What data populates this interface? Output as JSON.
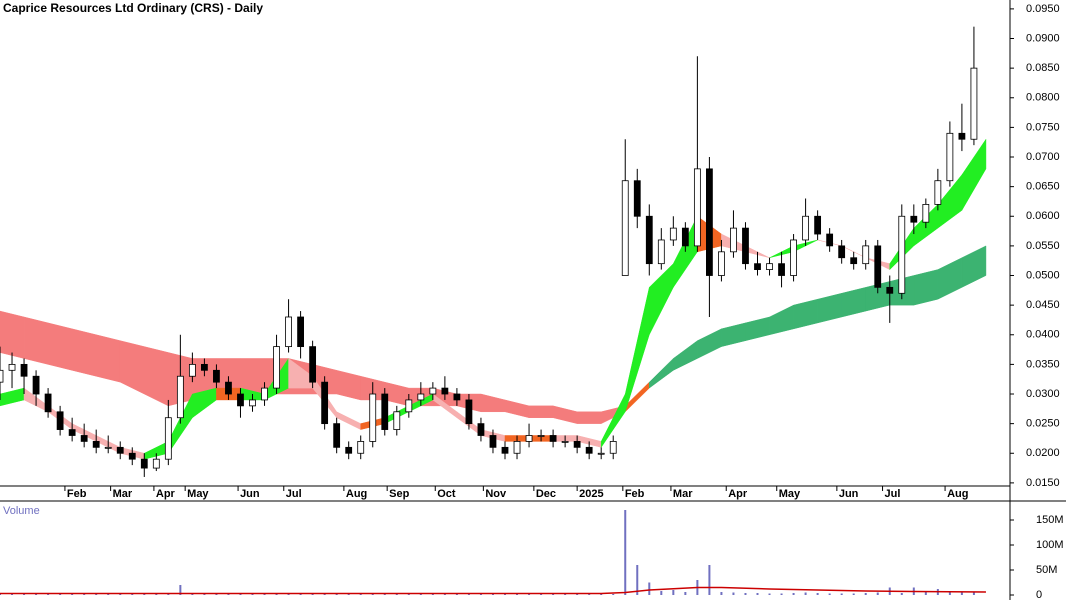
{
  "chart_data": {
    "type": "candlestick",
    "title": "Caprice Resources Ltd Ordinary (CRS) - Daily",
    "xlim": [
      0,
      420
    ],
    "xticks": [
      {
        "value": 27,
        "label": "Feb"
      },
      {
        "value": 46,
        "label": "Mar"
      },
      {
        "value": 64,
        "label": "Apr"
      },
      {
        "value": 77,
        "label": "May"
      },
      {
        "value": 99,
        "label": "Jun"
      },
      {
        "value": 118,
        "label": "Jul"
      },
      {
        "value": 143,
        "label": "Aug"
      },
      {
        "value": 161,
        "label": "Sep"
      },
      {
        "value": 181,
        "label": "Oct"
      },
      {
        "value": 201,
        "label": "Nov"
      },
      {
        "value": 222,
        "label": "Dec"
      },
      {
        "value": 240,
        "label": "2025"
      },
      {
        "value": 259,
        "label": "Feb"
      },
      {
        "value": 279,
        "label": "Mar"
      },
      {
        "value": 302,
        "label": "Apr"
      },
      {
        "value": 323,
        "label": "May"
      },
      {
        "value": 348,
        "label": "Jun"
      },
      {
        "value": 367,
        "label": "Jul"
      },
      {
        "value": 393,
        "label": "Aug"
      }
    ],
    "ylim": [
      0.0138,
      0.0965
    ],
    "yticks": [
      {
        "value": 0.015,
        "label": "0.0150"
      },
      {
        "value": 0.02,
        "label": "0.0200"
      },
      {
        "value": 0.025,
        "label": "0.0250"
      },
      {
        "value": 0.03,
        "label": "0.0300"
      },
      {
        "value": 0.035,
        "label": "0.0350"
      },
      {
        "value": 0.04,
        "label": "0.0400"
      },
      {
        "value": 0.045,
        "label": "0.0450"
      },
      {
        "value": 0.05,
        "label": "0.0500"
      },
      {
        "value": 0.055,
        "label": "0.0550"
      },
      {
        "value": 0.06,
        "label": "0.0600"
      },
      {
        "value": 0.065,
        "label": "0.0650"
      },
      {
        "value": 0.07,
        "label": "0.0700"
      },
      {
        "value": 0.075,
        "label": "0.0750"
      },
      {
        "value": 0.08,
        "label": "0.0800"
      },
      {
        "value": 0.085,
        "label": "0.0850"
      },
      {
        "value": 0.09,
        "label": "0.0900"
      },
      {
        "value": 0.095,
        "label": "0.0950"
      }
    ],
    "candles": {
      "up_color": "#ffffff",
      "down_color": "#000000",
      "x": [
        0,
        5,
        10,
        15,
        20,
        25,
        30,
        35,
        40,
        45,
        50,
        55,
        60,
        65,
        70,
        75,
        80,
        85,
        90,
        95,
        100,
        105,
        110,
        115,
        120,
        125,
        130,
        135,
        140,
        145,
        150,
        155,
        160,
        165,
        170,
        175,
        180,
        185,
        190,
        195,
        200,
        205,
        210,
        215,
        220,
        225,
        230,
        235,
        240,
        245,
        250,
        255,
        260,
        265,
        270,
        275,
        280,
        285,
        290,
        295,
        300,
        305,
        310,
        315,
        320,
        325,
        330,
        335,
        340,
        345,
        350,
        355,
        360,
        365,
        370,
        375,
        380,
        385,
        390,
        395,
        400,
        405
      ],
      "open": [
        0.032,
        0.034,
        0.035,
        0.033,
        0.03,
        0.027,
        0.024,
        0.023,
        0.022,
        0.021,
        0.021,
        0.02,
        0.019,
        0.0175,
        0.019,
        0.026,
        0.033,
        0.035,
        0.034,
        0.032,
        0.03,
        0.028,
        0.029,
        0.031,
        0.038,
        0.043,
        0.038,
        0.032,
        0.025,
        0.021,
        0.02,
        0.022,
        0.03,
        0.024,
        0.027,
        0.029,
        0.03,
        0.031,
        0.03,
        0.029,
        0.025,
        0.023,
        0.021,
        0.02,
        0.022,
        0.023,
        0.023,
        0.022,
        0.022,
        0.021,
        0.02,
        0.02,
        0.05,
        0.066,
        0.06,
        0.052,
        0.056,
        0.058,
        0.055,
        0.068,
        0.05,
        0.054,
        0.058,
        0.052,
        0.051,
        0.052,
        0.05,
        0.056,
        0.06,
        0.057,
        0.055,
        0.053,
        0.052,
        0.055,
        0.048,
        0.047,
        0.06,
        0.059,
        0.062,
        0.066,
        0.074,
        0.073
      ],
      "high": [
        0.038,
        0.037,
        0.036,
        0.034,
        0.031,
        0.028,
        0.026,
        0.025,
        0.024,
        0.023,
        0.022,
        0.021,
        0.02,
        0.02,
        0.029,
        0.04,
        0.037,
        0.036,
        0.035,
        0.033,
        0.031,
        0.03,
        0.032,
        0.04,
        0.046,
        0.044,
        0.039,
        0.033,
        0.026,
        0.022,
        0.023,
        0.032,
        0.031,
        0.028,
        0.03,
        0.032,
        0.032,
        0.033,
        0.031,
        0.03,
        0.026,
        0.024,
        0.022,
        0.023,
        0.025,
        0.024,
        0.024,
        0.023,
        0.023,
        0.022,
        0.021,
        0.023,
        0.073,
        0.068,
        0.062,
        0.058,
        0.06,
        0.059,
        0.087,
        0.07,
        0.056,
        0.061,
        0.059,
        0.054,
        0.053,
        0.054,
        0.057,
        0.063,
        0.061,
        0.058,
        0.056,
        0.054,
        0.056,
        0.056,
        0.05,
        0.062,
        0.062,
        0.063,
        0.068,
        0.076,
        0.079,
        0.092
      ],
      "low": [
        0.029,
        0.031,
        0.03,
        0.028,
        0.026,
        0.023,
        0.022,
        0.021,
        0.02,
        0.02,
        0.019,
        0.018,
        0.016,
        0.017,
        0.018,
        0.025,
        0.032,
        0.033,
        0.031,
        0.029,
        0.026,
        0.027,
        0.028,
        0.03,
        0.037,
        0.036,
        0.031,
        0.024,
        0.02,
        0.019,
        0.019,
        0.021,
        0.023,
        0.023,
        0.026,
        0.028,
        0.029,
        0.029,
        0.028,
        0.024,
        0.022,
        0.02,
        0.019,
        0.019,
        0.021,
        0.022,
        0.021,
        0.021,
        0.02,
        0.019,
        0.019,
        0.019,
        0.05,
        0.058,
        0.05,
        0.051,
        0.055,
        0.054,
        0.054,
        0.043,
        0.049,
        0.053,
        0.051,
        0.05,
        0.05,
        0.048,
        0.049,
        0.055,
        0.056,
        0.054,
        0.052,
        0.051,
        0.051,
        0.047,
        0.042,
        0.046,
        0.057,
        0.058,
        0.061,
        0.065,
        0.071,
        0.072
      ],
      "close": [
        0.034,
        0.035,
        0.033,
        0.03,
        0.027,
        0.024,
        0.023,
        0.022,
        0.021,
        0.021,
        0.02,
        0.019,
        0.0175,
        0.019,
        0.026,
        0.033,
        0.035,
        0.034,
        0.032,
        0.03,
        0.028,
        0.029,
        0.031,
        0.038,
        0.043,
        0.038,
        0.032,
        0.025,
        0.021,
        0.02,
        0.022,
        0.03,
        0.024,
        0.027,
        0.029,
        0.03,
        0.031,
        0.03,
        0.029,
        0.025,
        0.023,
        0.021,
        0.02,
        0.022,
        0.023,
        0.023,
        0.022,
        0.022,
        0.021,
        0.02,
        0.02,
        0.022,
        0.066,
        0.06,
        0.052,
        0.056,
        0.058,
        0.055,
        0.068,
        0.05,
        0.054,
        0.058,
        0.052,
        0.051,
        0.052,
        0.05,
        0.056,
        0.06,
        0.057,
        0.055,
        0.053,
        0.052,
        0.055,
        0.048,
        0.047,
        0.06,
        0.059,
        0.062,
        0.066,
        0.074,
        0.073,
        0.085
      ]
    },
    "ribbons": [
      {
        "x": [
          0,
          10,
          20,
          30,
          40,
          50,
          60,
          70,
          80,
          90,
          100,
          110,
          120,
          130,
          140,
          150,
          160,
          170,
          180,
          190,
          200,
          210,
          220,
          230,
          240,
          250,
          260,
          270,
          280,
          290,
          300,
          310,
          320,
          330,
          340,
          350,
          360,
          370,
          380,
          390,
          400,
          410
        ],
        "upper": [
          0.044,
          0.043,
          0.042,
          0.041,
          0.04,
          0.039,
          0.038,
          0.037,
          0.036,
          0.036,
          0.036,
          0.036,
          0.036,
          0.035,
          0.034,
          0.033,
          0.032,
          0.031,
          0.031,
          0.03,
          0.03,
          0.029,
          0.028,
          0.028,
          0.027,
          0.027,
          0.028,
          0.032,
          0.036,
          0.039,
          0.041,
          0.042,
          0.043,
          0.045,
          0.046,
          0.047,
          0.048,
          0.049,
          0.05,
          0.051,
          0.053,
          0.055
        ],
        "lower": [
          0.037,
          0.036,
          0.035,
          0.034,
          0.033,
          0.032,
          0.03,
          0.028,
          0.029,
          0.03,
          0.03,
          0.03,
          0.03,
          0.03,
          0.03,
          0.029,
          0.029,
          0.028,
          0.028,
          0.028,
          0.027,
          0.027,
          0.026,
          0.026,
          0.025,
          0.025,
          0.027,
          0.031,
          0.034,
          0.036,
          0.038,
          0.039,
          0.04,
          0.041,
          0.042,
          0.043,
          0.044,
          0.045,
          0.045,
          0.046,
          0.048,
          0.05
        ],
        "colors": [
          "#f47c7c",
          "#f47c7c",
          "#f47c7c",
          "#f47c7c",
          "#f47c7c",
          "#f47c7c",
          "#f47c7c",
          "#f47c7c",
          "#f47c7c",
          "#f47c7c",
          "#f47c7c",
          "#f47c7c",
          "#f47c7c",
          "#f47c7c",
          "#f47c7c",
          "#f47c7c",
          "#f47c7c",
          "#f47c7c",
          "#f47c7c",
          "#f47c7c",
          "#f47c7c",
          "#f47c7c",
          "#f47c7c",
          "#f47c7c",
          "#f47c7c",
          "#f47c7c",
          "#f26522",
          "#3cb371",
          "#3cb371",
          "#3cb371",
          "#3cb371",
          "#3cb371",
          "#3cb371",
          "#3cb371",
          "#3cb371",
          "#3cb371",
          "#3cb371",
          "#3cb371",
          "#3cb371",
          "#3cb371",
          "#3cb371",
          "#3cb371"
        ]
      },
      {
        "x": [
          0,
          10,
          20,
          30,
          40,
          50,
          60,
          70,
          80,
          90,
          100,
          110,
          120,
          130,
          140,
          150,
          160,
          170,
          180,
          190,
          200,
          210,
          220,
          230,
          240,
          250,
          260,
          270,
          280,
          290,
          300,
          310,
          320,
          330,
          340,
          350,
          360,
          370,
          380,
          390,
          400,
          410
        ],
        "upper": [
          0.03,
          0.031,
          0.028,
          0.025,
          0.023,
          0.021,
          0.02,
          0.022,
          0.03,
          0.031,
          0.031,
          0.03,
          0.036,
          0.033,
          0.027,
          0.025,
          0.026,
          0.028,
          0.03,
          0.027,
          0.024,
          0.023,
          0.023,
          0.023,
          0.023,
          0.022,
          0.03,
          0.048,
          0.052,
          0.06,
          0.057,
          0.055,
          0.053,
          0.055,
          0.056,
          0.055,
          0.053,
          0.052,
          0.058,
          0.062,
          0.067,
          0.073
        ],
        "lower": [
          0.028,
          0.029,
          0.027,
          0.024,
          0.022,
          0.02,
          0.019,
          0.02,
          0.026,
          0.029,
          0.029,
          0.029,
          0.031,
          0.031,
          0.026,
          0.024,
          0.025,
          0.027,
          0.029,
          0.026,
          0.023,
          0.022,
          0.022,
          0.022,
          0.022,
          0.021,
          0.027,
          0.04,
          0.048,
          0.054,
          0.055,
          0.054,
          0.053,
          0.054,
          0.056,
          0.055,
          0.053,
          0.051,
          0.055,
          0.058,
          0.061,
          0.068
        ],
        "colors": [
          "#22ee22",
          "#f7b0b0",
          "#f7b0b0",
          "#f7b0b0",
          "#f7b0b0",
          "#f7b0b0",
          "#22ee22",
          "#22ee22",
          "#22ee22",
          "#f26522",
          "#22ee22",
          "#22ee22",
          "#f7b0b0",
          "#f7b0b0",
          "#f7b0b0",
          "#f26522",
          "#22ee22",
          "#22ee22",
          "#f7b0b0",
          "#f7b0b0",
          "#f7b0b0",
          "#f26522",
          "#f26522",
          "#f7b0b0",
          "#f7b0b0",
          "#22ee22",
          "#22ee22",
          "#22ee22",
          "#22ee22",
          "#f26522",
          "#f7b0b0",
          "#f7b0b0",
          "#22ee22",
          "#22ee22",
          "#f7b0b0",
          "#f7b0b0",
          "#f7b0b0",
          "#22ee22",
          "#22ee22",
          "#22ee22",
          "#22ee22",
          "#22ee22"
        ]
      }
    ],
    "volume": {
      "label": "Volume",
      "color": "#7070c0",
      "ylim": [
        0,
        180000000
      ],
      "yticks": [
        {
          "value": 0,
          "label": "0"
        },
        {
          "value": 50000000,
          "label": "50M"
        },
        {
          "value": 100000000,
          "label": "100M"
        },
        {
          "value": 150000000,
          "label": "150M"
        }
      ],
      "values": [
        2000000,
        2000000,
        2000000,
        2000000,
        2000000,
        2000000,
        2000000,
        2000000,
        2000000,
        2000000,
        2000000,
        2000000,
        2000000,
        2000000,
        2000000,
        20000000,
        3000000,
        2000000,
        2000000,
        2000000,
        2000000,
        2000000,
        2000000,
        3000000,
        4000000,
        2000000,
        2000000,
        2000000,
        2000000,
        2000000,
        2000000,
        2000000,
        2000000,
        2000000,
        2000000,
        2000000,
        2000000,
        2000000,
        2000000,
        2000000,
        2000000,
        2000000,
        2000000,
        2000000,
        2000000,
        2000000,
        2000000,
        2000000,
        2000000,
        2000000,
        2000000,
        2000000,
        170000000,
        60000000,
        25000000,
        8000000,
        10000000,
        6000000,
        30000000,
        60000000,
        6000000,
        5000000,
        4000000,
        4000000,
        3000000,
        3000000,
        4000000,
        5000000,
        4000000,
        3000000,
        3000000,
        3000000,
        4000000,
        5000000,
        15000000,
        4000000,
        15000000,
        6000000,
        12000000,
        5000000,
        5000000,
        6000000
      ],
      "ma": {
        "color": "#cc0000",
        "x": [
          0,
          60,
          120,
          180,
          250,
          260,
          270,
          290,
          300,
          320,
          340,
          360,
          380,
          410
        ],
        "values": [
          3000000,
          3000000,
          3000000,
          3000000,
          3000000,
          5000000,
          10000000,
          15000000,
          15000000,
          12000000,
          10000000,
          8000000,
          7000000,
          6000000
        ]
      }
    }
  }
}
